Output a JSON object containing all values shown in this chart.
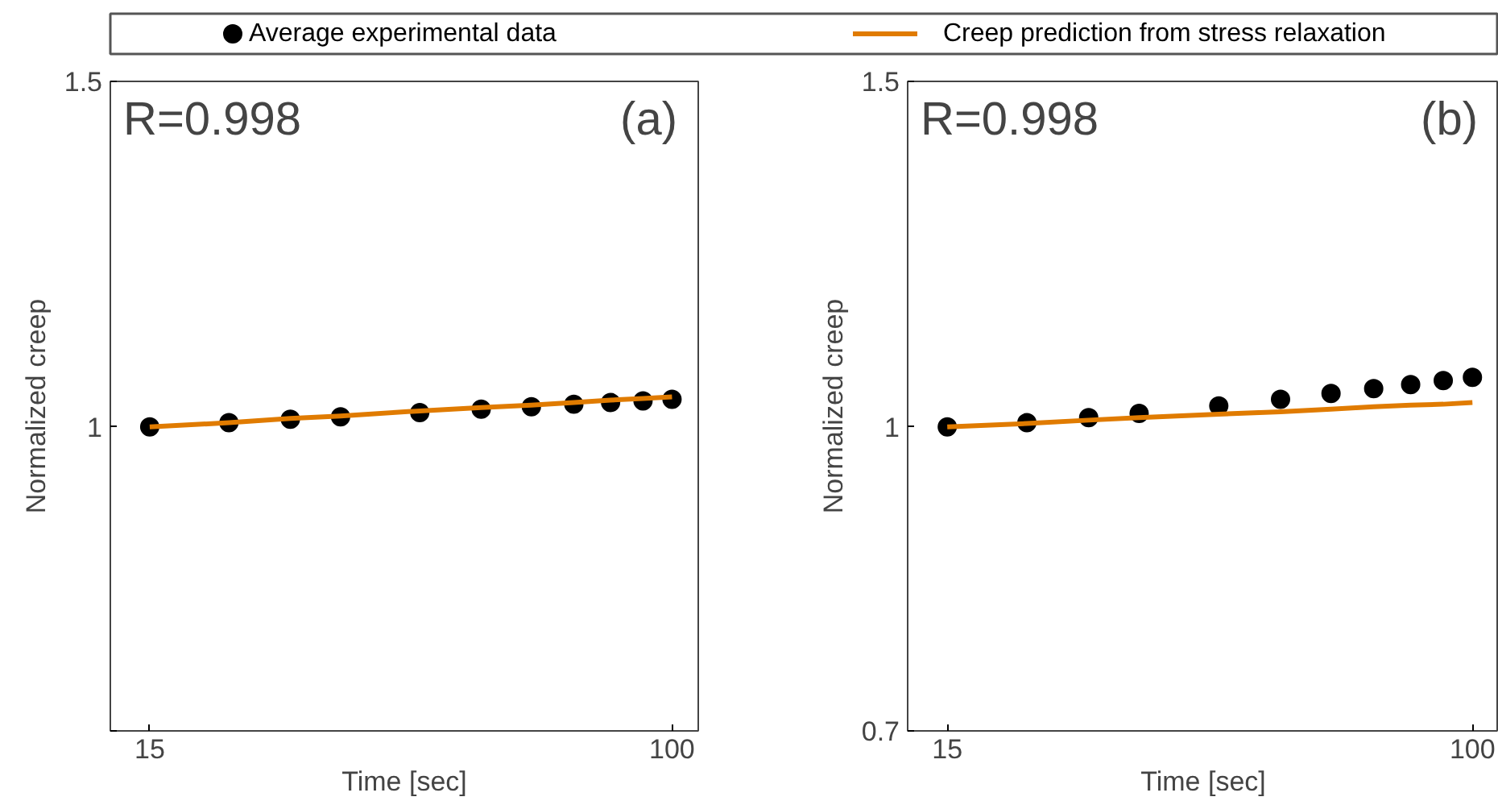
{
  "chart_data": [
    {
      "type": "scatter",
      "xlabel": "Time [sec]",
      "ylabel": "Normalized creep",
      "annotations": [
        "R=0.998",
        "(a)"
      ],
      "x": [
        15,
        20,
        25,
        30,
        40,
        50,
        60,
        70,
        80,
        90,
        100
      ],
      "log": "xy",
      "xlim": [
        13,
        110
      ],
      "ylim": [
        0.7,
        1.5
      ],
      "xticks": [
        15,
        100
      ],
      "yticks": [
        {
          "value": 0.7,
          "label": null
        },
        1,
        1.5
      ],
      "legend": "top",
      "grid": false,
      "series": [
        {
          "name": "Average experimental data",
          "marker": "circle",
          "color": "#000000",
          "values": [
            1.0,
            1.005,
            1.009,
            1.012,
            1.017,
            1.021,
            1.024,
            1.027,
            1.029,
            1.031,
            1.033
          ]
        },
        {
          "name": "Creep prediction from stress relaxation",
          "type": "line",
          "line_style": "solid",
          "color": "#e07b00",
          "values": [
            1.0,
            1.005,
            1.01,
            1.013,
            1.019,
            1.023,
            1.026,
            1.029,
            1.032,
            1.034,
            1.036
          ]
        }
      ]
    },
    {
      "type": "scatter",
      "xlabel": "Time [sec]",
      "ylabel": "Normalized creep",
      "annotations": [
        "R=0.998",
        "(b)"
      ],
      "x": [
        15,
        20,
        25,
        30,
        40,
        50,
        60,
        70,
        80,
        90,
        100
      ],
      "log": "xy",
      "xlim": [
        13,
        110
      ],
      "ylim": [
        0.7,
        1.5
      ],
      "xticks": [
        15,
        100
      ],
      "yticks": [
        0.7,
        1,
        1.5
      ],
      "grid": false,
      "series": [
        {
          "marker": "circle",
          "color": "#000000",
          "values": [
            1.0,
            1.005,
            1.011,
            1.016,
            1.025,
            1.033,
            1.04,
            1.046,
            1.051,
            1.056,
            1.06
          ]
        },
        {
          "type": "line",
          "line_style": "solid",
          "color": "#e07b00",
          "values": [
            1.0,
            1.004,
            1.008,
            1.011,
            1.015,
            1.018,
            1.021,
            1.024,
            1.026,
            1.027,
            1.029
          ]
        }
      ]
    }
  ]
}
